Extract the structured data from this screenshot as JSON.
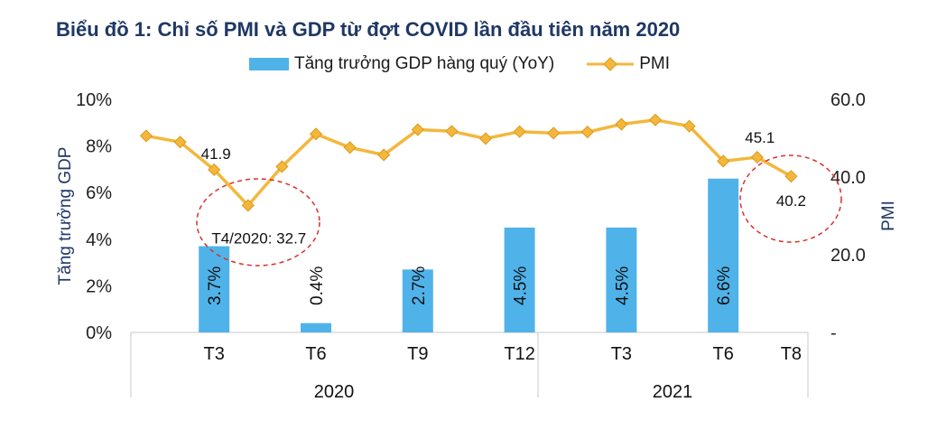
{
  "title": "Biểu đồ 1: Chỉ số PMI và GDP từ đợt COVID lần đầu tiên năm 2020",
  "colors": {
    "bar": "#4fb3ea",
    "line": "#f4b73c",
    "marker_fill": "#f4b73c",
    "marker_stroke": "#d99a1e",
    "ellipse": "#d9302b",
    "axis_text": "#1f3864"
  },
  "chart_data": {
    "type": "bar+line",
    "legend": {
      "bar": "Tăng trưởng GDP hàng quý (YoY)",
      "line": "PMI",
      "placement": "top-center"
    },
    "y_left": {
      "label": "Tăng trưởng GDP",
      "ticks": [
        "0%",
        "2%",
        "4%",
        "6%",
        "8%",
        "10%"
      ],
      "min": 0,
      "max": 10
    },
    "y_right": {
      "label": "PMI",
      "ticks": [
        "-",
        "20.0",
        "40.0",
        "60.0"
      ],
      "min": 0,
      "max": 60
    },
    "x_month_labels": [
      {
        "label": "T3",
        "index": 2
      },
      {
        "label": "T6",
        "index": 5
      },
      {
        "label": "T9",
        "index": 8
      },
      {
        "label": "T12",
        "index": 11
      },
      {
        "label": "T3",
        "index": 14
      },
      {
        "label": "T6",
        "index": 17
      },
      {
        "label": "T8",
        "index": 19
      }
    ],
    "x_year_groups": [
      {
        "label": "2020",
        "start": 0,
        "end": 11
      },
      {
        "label": "2021",
        "start": 12,
        "end": 19
      }
    ],
    "gdp_bars": [
      {
        "index": 2,
        "value": 3.7,
        "label": "3.7%"
      },
      {
        "index": 5,
        "value": 0.4,
        "label": "0.4%"
      },
      {
        "index": 8,
        "value": 2.7,
        "label": "2.7%"
      },
      {
        "index": 11,
        "value": 4.5,
        "label": "4.5%"
      },
      {
        "index": 14,
        "value": 4.5,
        "label": "4.5%"
      },
      {
        "index": 17,
        "value": 6.6,
        "label": "6.6%"
      }
    ],
    "pmi": [
      50.6,
      49.0,
      41.9,
      32.7,
      42.7,
      51.1,
      47.6,
      45.7,
      52.2,
      51.8,
      49.9,
      51.7,
      51.3,
      51.6,
      53.6,
      54.7,
      53.1,
      44.1,
      45.1,
      40.2
    ],
    "annotations": [
      {
        "text": "41.9",
        "index": 2
      },
      {
        "text": "T4/2020: 32.7",
        "index": 3
      },
      {
        "text": "45.1",
        "index": 18
      },
      {
        "text": "40.2",
        "index": 19
      }
    ]
  }
}
